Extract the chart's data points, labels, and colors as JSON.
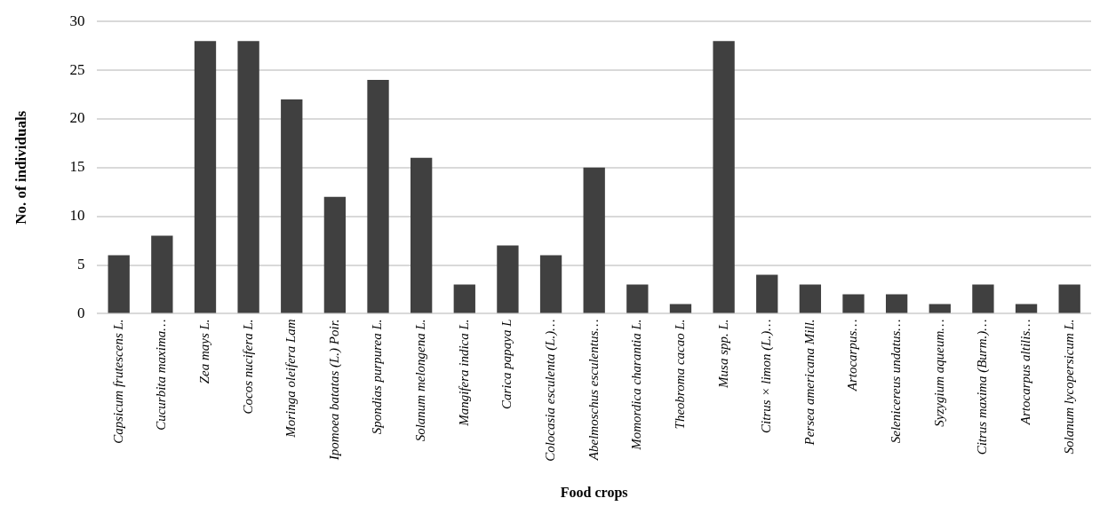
{
  "chart_data": {
    "type": "bar",
    "xlabel": "Food crops",
    "ylabel": "No. of individuals",
    "categories": [
      "Capsicum frutescens L.",
      "Cucurbita maxima…",
      "Zea mays L.",
      "Cocos nucifera L.",
      "Moringa oleifera Lam",
      "Ipomoea batatas (L.) Poir.",
      "Spondias purpurea L.",
      "Solanum melongena L.",
      "Mangifera indica L.",
      "Carica papaya L",
      "Colocasia esculenta (L.)…",
      "Abelmoschus esculentus…",
      "Momordica charantia L.",
      "Theobroma cacao L.",
      "Musa spp. L.",
      "Citrus × limon (L.)…",
      "Persea americana Mill.",
      "Artocarpus…",
      "Selenicereus undatus…",
      "Syzygium aqueum…",
      "Citrus maxima (Burm.)…",
      "Artocarpus altilis…",
      "Solanum lycopersicum L."
    ],
    "values": [
      6,
      8,
      28,
      28,
      22,
      12,
      24,
      16,
      3,
      7,
      6,
      15,
      3,
      1,
      28,
      4,
      3,
      2,
      2,
      1,
      3,
      1,
      3
    ],
    "color": "#404040",
    "ylim": [
      0,
      30
    ],
    "yticks": [
      0,
      5,
      10,
      15,
      20,
      25,
      30
    ],
    "grid": "y",
    "legend": false
  }
}
